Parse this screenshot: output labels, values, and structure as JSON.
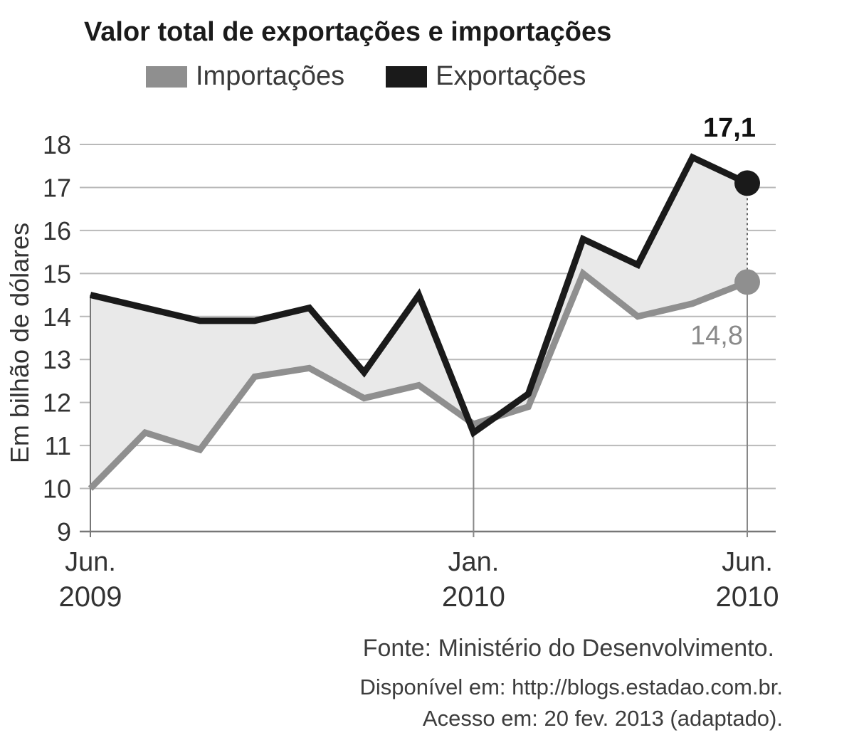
{
  "chart_data": {
    "type": "line",
    "title": "Valor total de exportações e importações",
    "ylabel": "Em bilhão de dólares",
    "ylim": [
      9,
      18
    ],
    "yticks": [
      "9",
      "10",
      "11",
      "12",
      "13",
      "14",
      "15",
      "16",
      "17",
      "18"
    ],
    "x_tick_labels": [
      {
        "month": "Jun.",
        "year": "2009",
        "index": 0
      },
      {
        "month": "Jan.",
        "year": "2010",
        "index": 7
      },
      {
        "month": "Jun.",
        "year": "2010",
        "index": 12
      }
    ],
    "grid": true,
    "legend_position": "top",
    "series": [
      {
        "name": "Importações",
        "color": "#8f8f8f",
        "values": [
          10.0,
          11.3,
          10.9,
          12.6,
          12.8,
          12.1,
          12.4,
          11.5,
          11.9,
          15.0,
          14.0,
          14.3,
          14.8
        ]
      },
      {
        "name": "Exportações",
        "color": "#1a1a1a",
        "values": [
          14.5,
          14.2,
          13.9,
          13.9,
          14.2,
          12.7,
          14.5,
          11.3,
          12.2,
          15.8,
          15.2,
          17.7,
          17.1
        ]
      }
    ],
    "annotations": {
      "exports_last": "17,1",
      "imports_last": "14,8"
    },
    "fill_between_color": "#e9e9e9"
  },
  "source": {
    "line1": "Fonte: Ministério do Desenvolvimento.",
    "line2": "Disponível em: http://blogs.estadao.com.br.",
    "line3": "Acesso em: 20 fev. 2013 (adaptado)."
  }
}
